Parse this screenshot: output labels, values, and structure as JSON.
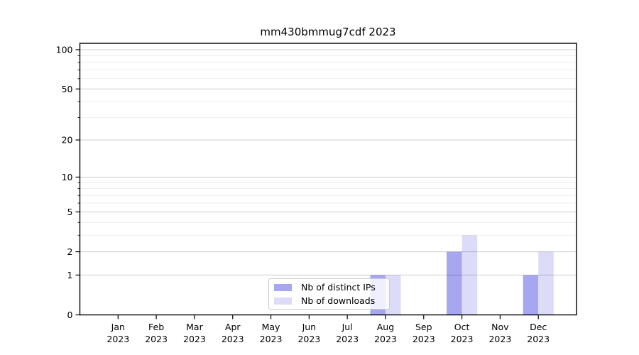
{
  "title": "mm430bmmug7cdf 2023",
  "legend": {
    "items": [
      {
        "label": "Nb of distinct IPs",
        "color": "#a6a6f1"
      },
      {
        "label": "Nb of downloads",
        "color": "#dcdcf8"
      }
    ]
  },
  "chart_data": {
    "type": "bar",
    "title": "mm430bmmug7cdf 2023",
    "categories": [
      "Jan",
      "Feb",
      "Mar",
      "Apr",
      "May",
      "Jun",
      "Jul",
      "Aug",
      "Sep",
      "Oct",
      "Nov",
      "Dec"
    ],
    "category_year": "2023",
    "series": [
      {
        "name": "Nb of distinct IPs",
        "color": "#a6a6f1",
        "values": [
          0,
          0,
          0,
          0,
          0,
          0,
          0,
          1,
          0,
          2,
          0,
          1
        ]
      },
      {
        "name": "Nb of downloads",
        "color": "#dcdcf8",
        "values": [
          0,
          0,
          0,
          0,
          0,
          0,
          0,
          1,
          0,
          3,
          0,
          2
        ]
      }
    ],
    "xlabel": "",
    "ylabel": "",
    "yscale": "log1p",
    "ylim": [
      0,
      112
    ],
    "y_major_ticks": [
      0,
      1,
      2,
      5,
      10,
      20,
      50,
      100
    ],
    "y_minor_ticks": [
      3,
      4,
      6,
      7,
      8,
      9,
      30,
      40,
      60,
      70,
      80,
      90
    ],
    "grid": "horizontal-major-and-minor",
    "grid_over_bars": true,
    "legend_position": "lower center",
    "colors": {
      "spine": "#000000",
      "grid_major": "rgba(0,0,0,0.20)",
      "grid_minor": "rgba(0,0,0,0.07)",
      "tick_label": "#000000"
    }
  }
}
